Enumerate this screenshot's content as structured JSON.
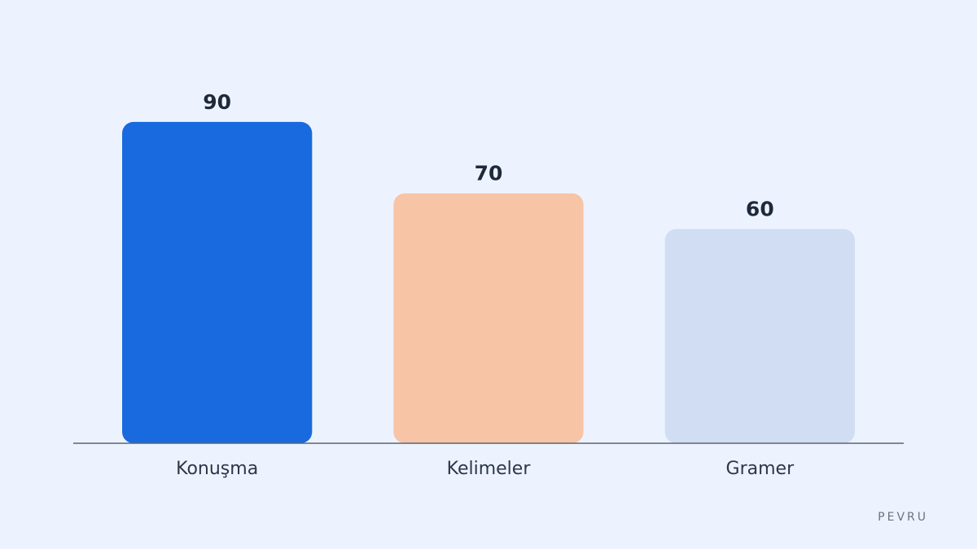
{
  "chart_data": {
    "type": "bar",
    "categories": [
      "Konuşma",
      "Kelimeler",
      "Gramer"
    ],
    "values": [
      90,
      70,
      60
    ],
    "colors": [
      "#186ade",
      "#f7c4a6",
      "#d0ddf2"
    ],
    "ylim": [
      0,
      100
    ],
    "value_labels_shown": true,
    "watermark": "PEVRU"
  }
}
